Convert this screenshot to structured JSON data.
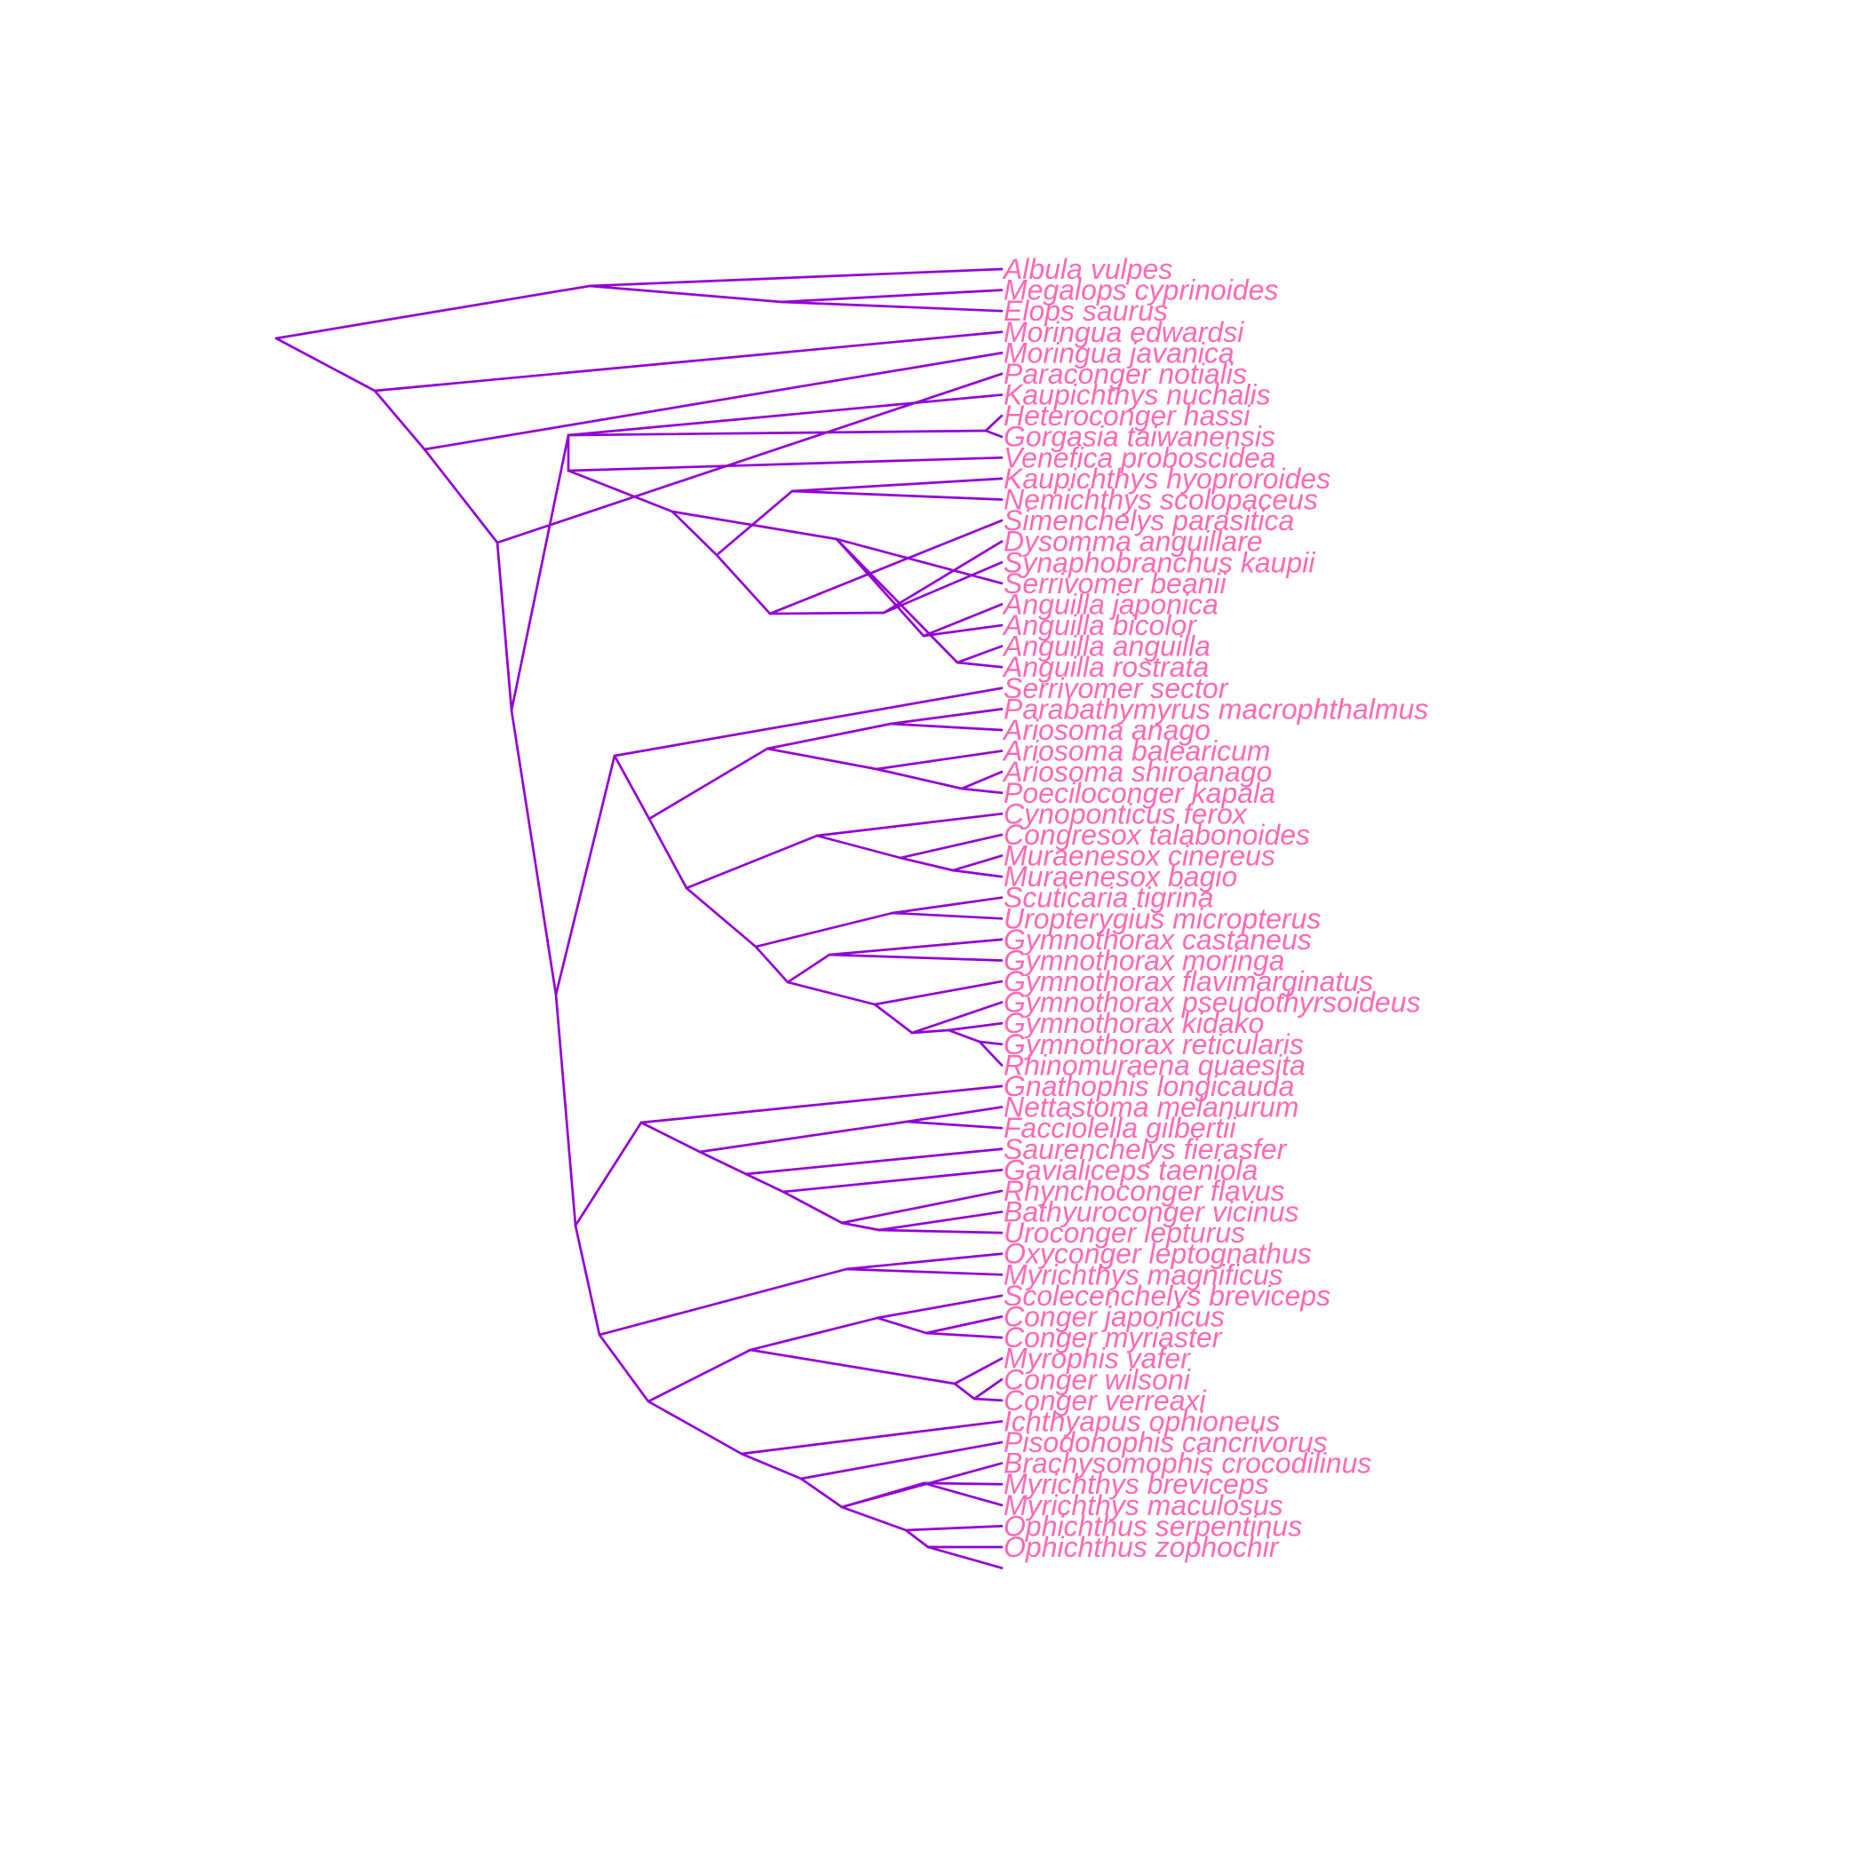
{
  "colors": {
    "branch": "#9400D3",
    "label": "#FF69B4",
    "background": "#FFFFFF"
  },
  "tree": {
    "type": "slanted-phylogram",
    "tips": [
      "Albula vulpes",
      "Megalops cyprinoides",
      "Elops saurus",
      "Moringua edwardsi",
      "Moringua javanica",
      "Paraconger notialis",
      "Kaupichthys nuchalis",
      "Heteroconger hassi",
      "Gorgasia taiwanensis",
      "Venefica proboscidea",
      "Kaupichthys hyoproroides",
      "Nemichthys scolopaceus",
      "Simenchelys parasitica",
      "Dysomma anguillare",
      "Synaphobranchus kaupii",
      "Serrivomer beanii",
      "Anguilla japonica",
      "Anguilla bicolor",
      "Anguilla anguilla",
      "Anguilla rostrata",
      "Serrivomer sector",
      "Parabathymyrus macrophthalmus",
      "Ariosoma anago",
      "Ariosoma balearicum",
      "Ariosoma shiroanago",
      "Poeciloconger kapala",
      "Cynoponticus ferox",
      "Congresox talabonoides",
      "Muraenesox cinereus",
      "Muraenesox bagio",
      "Scuticaria tigrina",
      "Uropterygius micropterus",
      "Gymnothorax castaneus",
      "Gymnothorax moringa",
      "Gymnothorax flavimarginatus",
      "Gymnothorax pseudothyrsoideus",
      "Gymnothorax kidako",
      "Gymnothorax reticularis",
      "Rhinomuraena quaesita",
      "Gnathophis longicauda",
      "Nettastoma melanurum",
      "Facciolella gilbertii",
      "Saurenchelys fierasfer",
      "Gavialiceps taeniola",
      "Rhynchoconger flavus",
      "Bathyuroconger vicinus",
      "Uroconger lepturus",
      "Oxyconger leptognathus",
      "Myrichthys magnificus",
      "Scolecenchelys breviceps",
      "Conger japonicus",
      "Conger myriaster",
      "Myrophis vafer",
      "Conger wilsoni",
      "Conger verreaxi",
      "Ichthyapus ophioneus",
      "Pisodonophis cancrivorus",
      "Brachysomophis crocodilinus",
      "Myrichthys breviceps",
      "Myrichthys maculosus",
      "Ophichthus serpentinus",
      "Ophichthus zophochir"
    ]
  }
}
